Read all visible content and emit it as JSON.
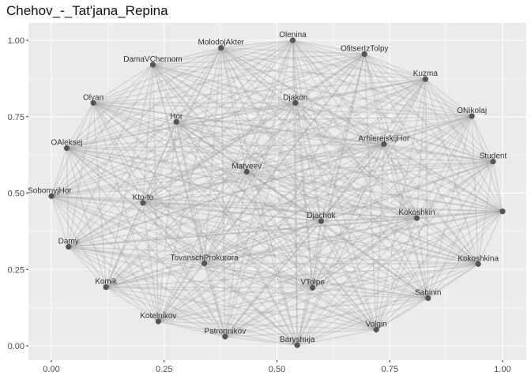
{
  "title": "Chehov_-_Tat'jana_Repina",
  "chart_data": {
    "type": "scatter",
    "subtype": "network-graph",
    "title": "Chehov_-_Tat'jana_Repina",
    "xlabel": "",
    "ylabel": "",
    "xlim": [
      -0.05,
      1.05
    ],
    "ylim": [
      -0.02,
      1.04
    ],
    "x_ticks": [
      "0.00",
      "0.25",
      "0.50",
      "0.75",
      "1.00"
    ],
    "y_ticks": [
      "0.00",
      "0.25",
      "0.50",
      "0.75",
      "1.00"
    ],
    "grid": true,
    "legend": "none",
    "colors": {
      "panel_background": "#ebebeb",
      "grid": "#ffffff",
      "edge": "#9e9e9e",
      "node": "#555555",
      "label": "#333333"
    },
    "nodes": [
      {
        "name": "Olenina",
        "x": 0.535,
        "y": 1.0
      },
      {
        "name": "MolodojAkter",
        "x": 0.376,
        "y": 0.975
      },
      {
        "name": "OfitserIzTolpy",
        "x": 0.694,
        "y": 0.955
      },
      {
        "name": "DamaVChernom",
        "x": 0.225,
        "y": 0.92
      },
      {
        "name": "Kuzma",
        "x": 0.829,
        "y": 0.873
      },
      {
        "name": "Olyan",
        "x": 0.093,
        "y": 0.795
      },
      {
        "name": "Djakon",
        "x": 0.541,
        "y": 0.795
      },
      {
        "name": "ONikolaj",
        "x": 0.932,
        "y": 0.752
      },
      {
        "name": "Hor",
        "x": 0.277,
        "y": 0.733
      },
      {
        "name": "ArhierejskijHor",
        "x": 0.737,
        "y": 0.66
      },
      {
        "name": "OAleksej",
        "x": 0.034,
        "y": 0.647
      },
      {
        "name": "Student",
        "x": 0.979,
        "y": 0.603
      },
      {
        "name": "Matveev",
        "x": 0.433,
        "y": 0.57
      },
      {
        "name": "SobornyjHor",
        "x": 0.0,
        "y": 0.49
      },
      {
        "name": "Kto-to",
        "x": 0.203,
        "y": 0.468
      },
      {
        "name": "Djachok",
        "x": 0.598,
        "y": 0.408
      },
      {
        "name": "Kokoshkin",
        "x": 0.81,
        "y": 0.418
      },
      {
        "name": "Damy",
        "x": 0.038,
        "y": 0.324
      },
      {
        "name": "TovanschProkurora",
        "x": 0.339,
        "y": 0.27
      },
      {
        "name": "Kokoshkina",
        "x": 0.946,
        "y": 0.268
      },
      {
        "name": "Komik",
        "x": 0.121,
        "y": 0.192
      },
      {
        "name": "VTolpe",
        "x": 0.579,
        "y": 0.19
      },
      {
        "name": "Sabinin",
        "x": 0.835,
        "y": 0.156
      },
      {
        "name": "Kotelnikov",
        "x": 0.237,
        "y": 0.08
      },
      {
        "name": "Volgin",
        "x": 0.72,
        "y": 0.053
      },
      {
        "name": "Patronnikov",
        "x": 0.385,
        "y": 0.03
      },
      {
        "name": "Baryshнja",
        "x": 0.545,
        "y": 0.002
      },
      {
        "name": "",
        "x": 1.0,
        "y": 0.44
      }
    ]
  }
}
